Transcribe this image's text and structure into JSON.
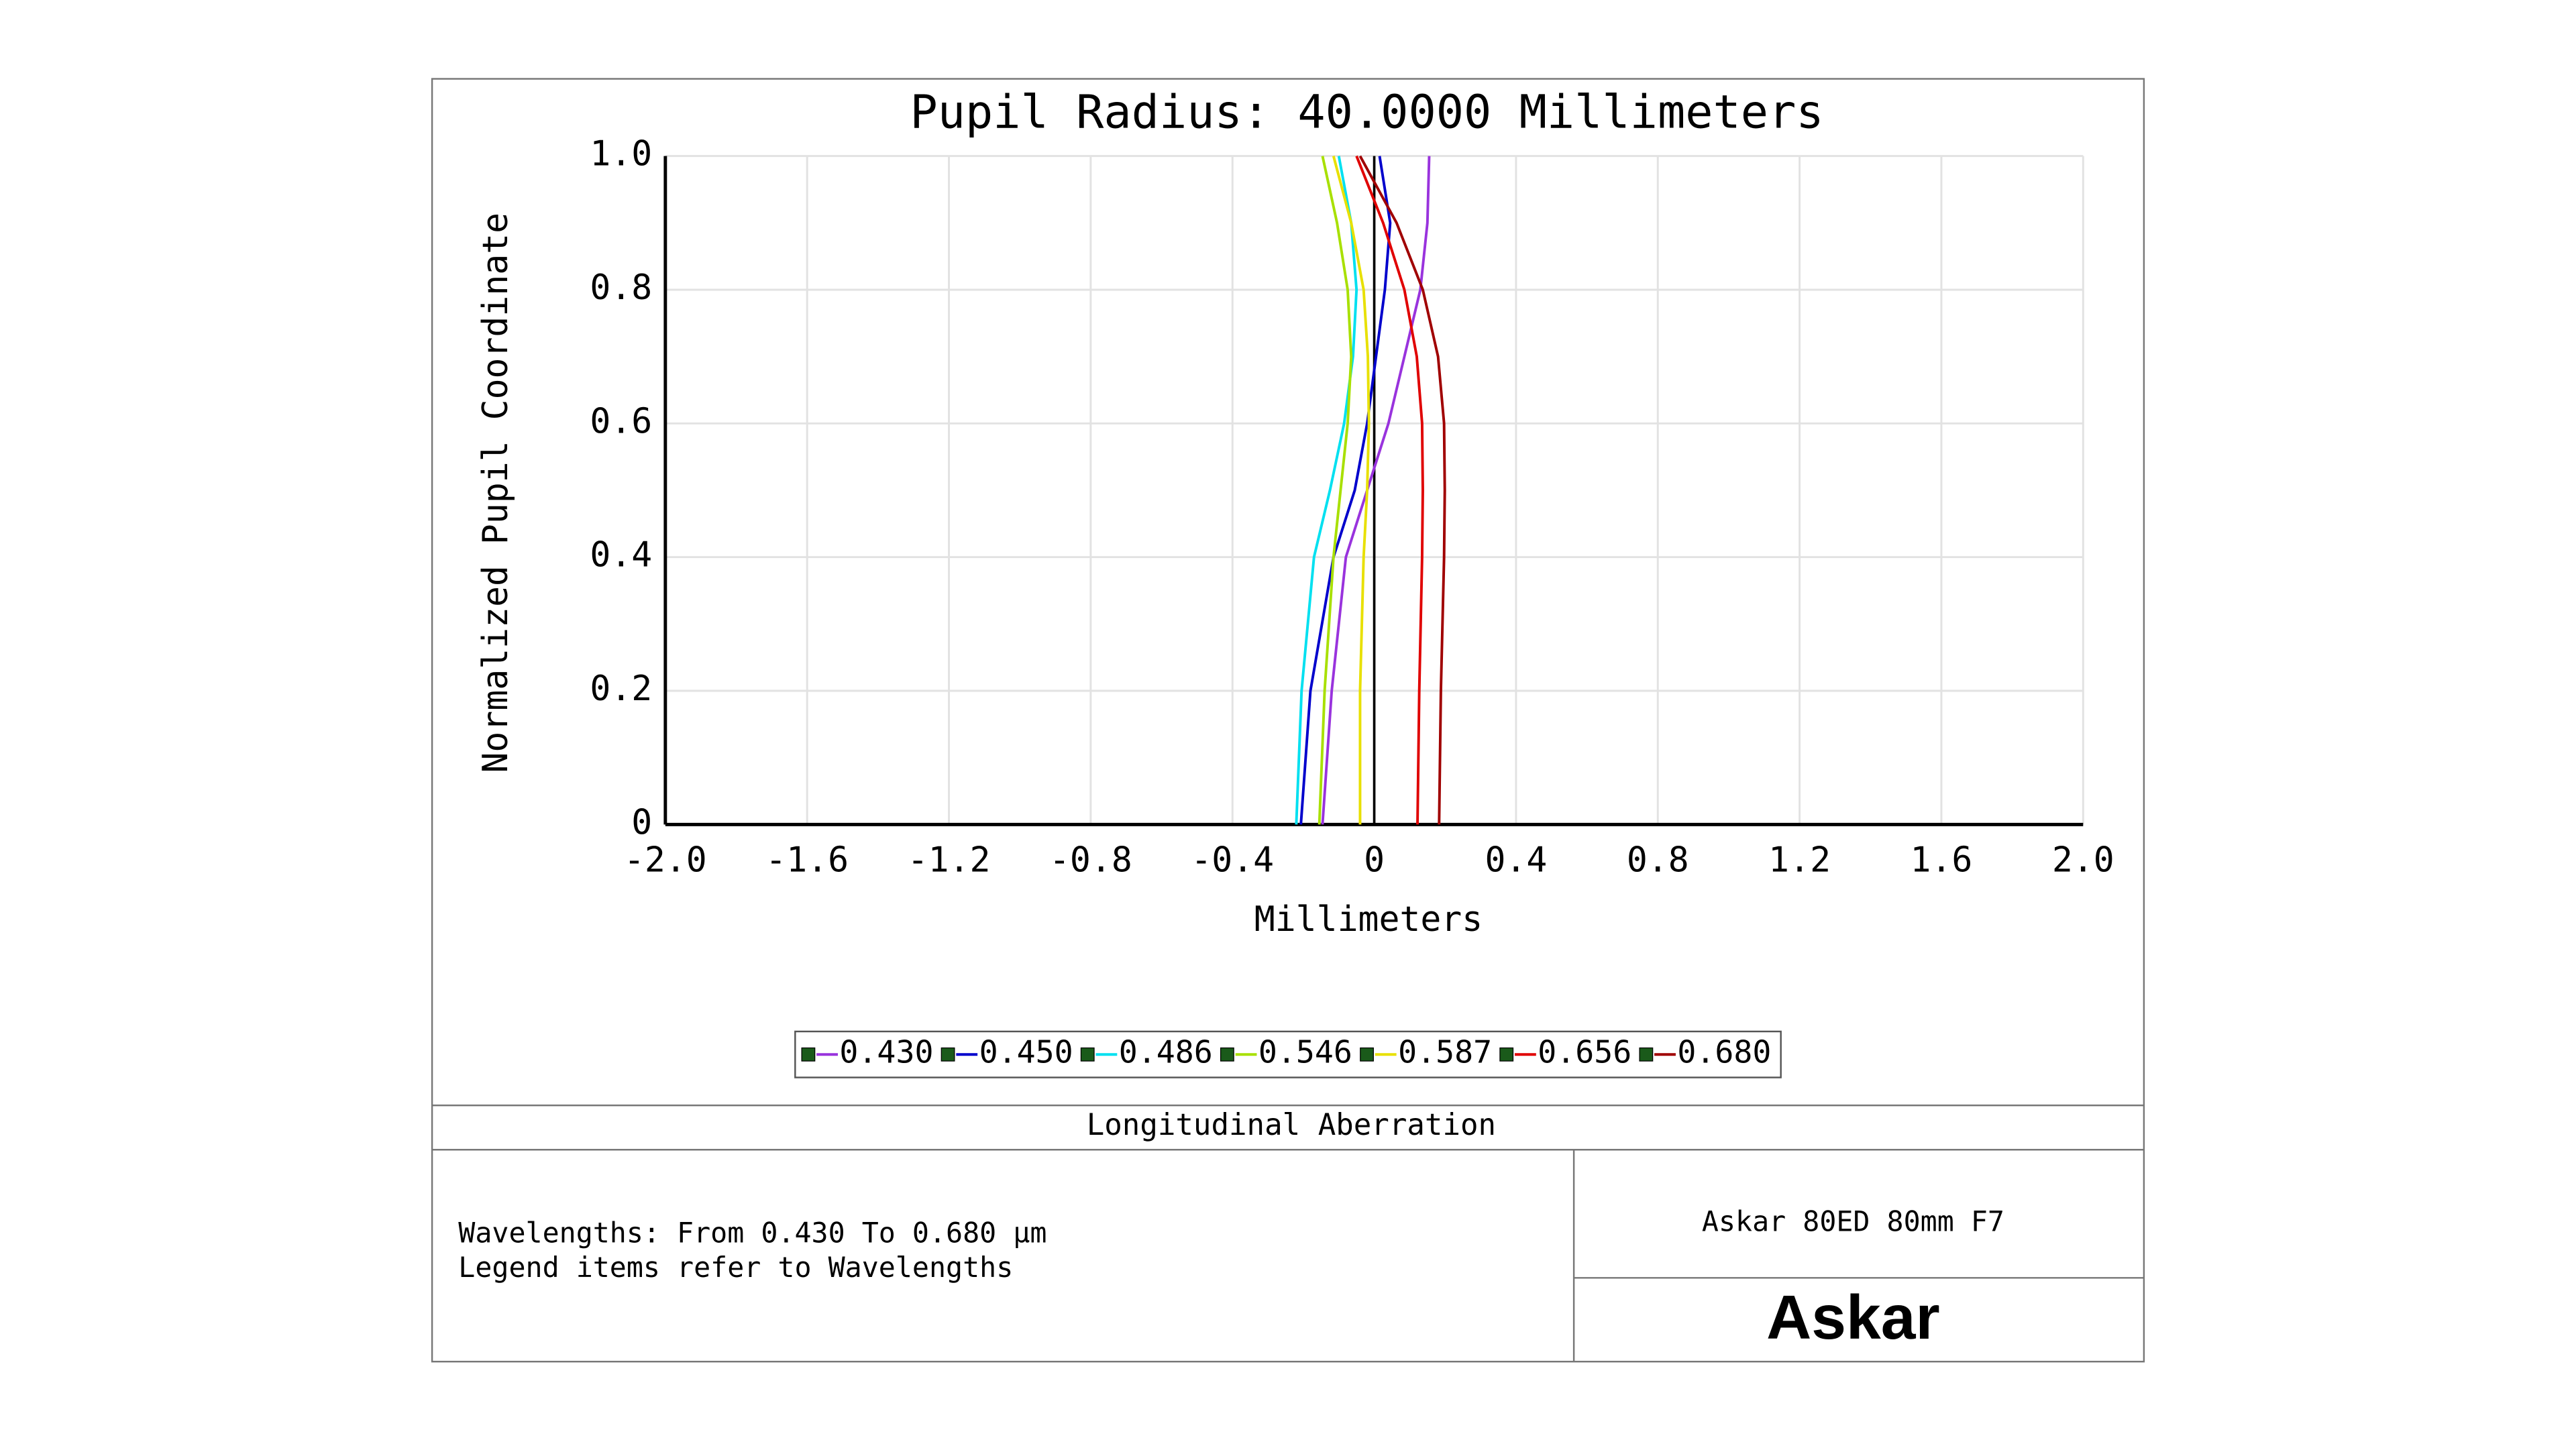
{
  "chart_data": {
    "type": "line",
    "title": "Pupil Radius: 40.0000 Millimeters",
    "xlabel": "Millimeters",
    "ylabel": "Normalized Pupil Coordinate",
    "xlim": [
      -2.0,
      2.0
    ],
    "ylim": [
      0,
      1.0
    ],
    "xticks": [
      {
        "value": -2.0,
        "label": "-2.0"
      },
      -1.6,
      -1.2,
      -0.8,
      -0.4,
      0,
      0.4,
      0.8,
      1.2,
      1.6,
      {
        "value": 2.0,
        "label": "2.0"
      }
    ],
    "yticks": [
      0,
      0.2,
      0.4,
      0.6,
      0.8,
      {
        "value": 1.0,
        "label": "1.0"
      }
    ],
    "grid": true,
    "y": [
      0,
      0.2,
      0.4,
      0.5,
      0.6,
      0.7,
      0.8,
      0.9,
      1.0
    ],
    "series": [
      {
        "name": "0.430",
        "color": "#9933dd",
        "x": [
          -0.146,
          -0.12,
          -0.08,
          -0.02,
          0.04,
          0.085,
          0.13,
          0.15,
          0.155
        ]
      },
      {
        "name": "0.450",
        "color": "#0000cc",
        "x": [
          -0.207,
          -0.18,
          -0.115,
          -0.055,
          -0.02,
          0.005,
          0.03,
          0.045,
          0.015
        ]
      },
      {
        "name": "0.486",
        "color": "#00e0f0",
        "x": [
          -0.22,
          -0.205,
          -0.17,
          -0.125,
          -0.085,
          -0.06,
          -0.05,
          -0.065,
          -0.1
        ]
      },
      {
        "name": "0.546",
        "color": "#a8e000",
        "x": [
          -0.155,
          -0.14,
          -0.115,
          -0.095,
          -0.075,
          -0.065,
          -0.075,
          -0.105,
          -0.146
        ]
      },
      {
        "name": "0.587",
        "color": "#e8e000",
        "x": [
          -0.04,
          -0.04,
          -0.03,
          -0.02,
          -0.015,
          -0.018,
          -0.03,
          -0.065,
          -0.115
        ]
      },
      {
        "name": "0.656",
        "color": "#e00000",
        "x": [
          0.122,
          0.127,
          0.135,
          0.137,
          0.135,
          0.12,
          0.085,
          0.025,
          -0.05
        ]
      },
      {
        "name": "0.680",
        "color": "#a00000",
        "x": [
          0.183,
          0.188,
          0.197,
          0.199,
          0.197,
          0.18,
          0.137,
          0.063,
          -0.04
        ]
      }
    ]
  },
  "footer": {
    "caption": "Longitudinal Aberration",
    "notes": [
      "Wavelengths: From 0.430 To 0.680 µm",
      "Legend items refer to Wavelengths"
    ],
    "product": "Askar 80ED 80mm F7",
    "brand": "Askar"
  }
}
